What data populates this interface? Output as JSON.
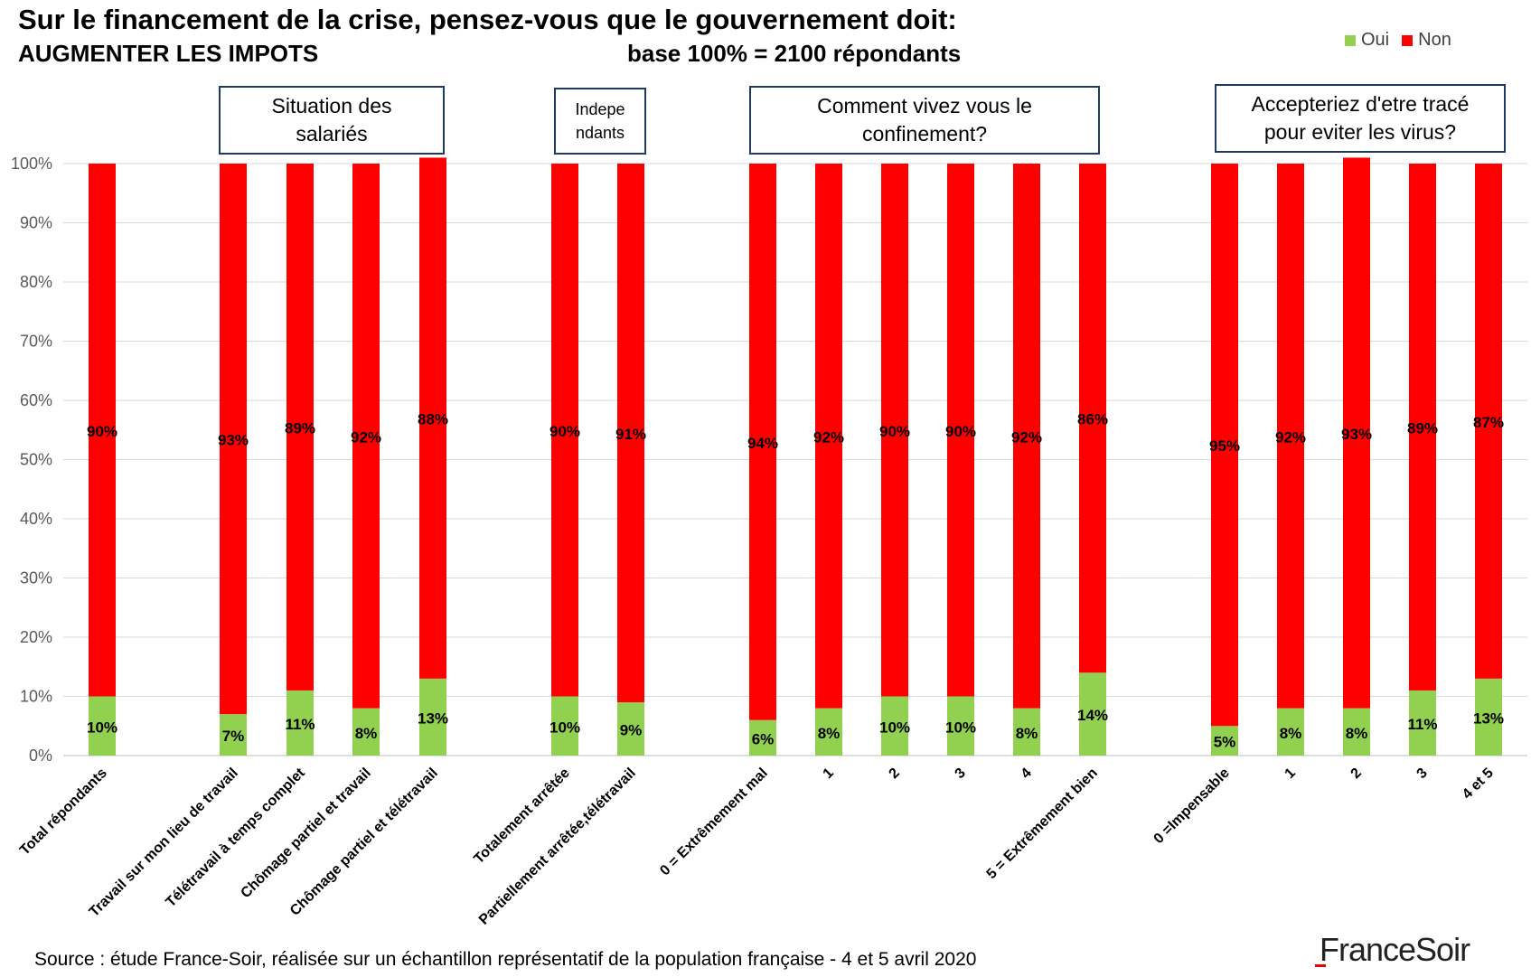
{
  "title": "Sur le financement de la crise, pensez-vous que le gouvernement doit:",
  "subtitle": "AUGMENTER LES IMPOTS",
  "base_label": "base 100% = 2100 répondants",
  "legend": [
    {
      "name": "Oui",
      "color": "#92d050"
    },
    {
      "name": "Non",
      "color": "#ff0000"
    }
  ],
  "group_boxes": [
    {
      "label": "Situation des\nsalariés"
    },
    {
      "label": "Indepe\nndants"
    },
    {
      "label": "Comment vivez vous le\nconfinement?"
    },
    {
      "label": "Accepteriez d'etre tracé\npour eviter les virus?"
    }
  ],
  "source": "Source : étude France-Soir, réalisée sur un échantillon représentatif de la population française - 4 et 5 avril 2020",
  "logo": "FranceSoir",
  "chart_data": {
    "type": "bar",
    "stacked": true,
    "categories": [
      "Total répondants",
      "Travail sur mon lieu de travail",
      "Télétravail à temps complet",
      "Chômage partiel et travail",
      "Chômage partiel et télétravail",
      "Totalement arrêtée",
      "Partiellement arrêtée,télétravail",
      "0 = Extrêmement mal",
      "1",
      "2",
      "3",
      "4",
      "5 = Extrêmement bien",
      "0 =Impensable",
      "1",
      "2",
      "3",
      "4 et 5"
    ],
    "series": [
      {
        "name": "Oui",
        "color": "#92d050",
        "values": [
          10,
          7,
          11,
          8,
          13,
          10,
          9,
          6,
          8,
          10,
          10,
          8,
          14,
          5,
          8,
          8,
          11,
          13
        ],
        "labels": [
          "10%",
          "7%",
          "11%",
          "8%",
          "13%",
          "10%",
          "9%",
          "6%",
          "8%",
          "10%",
          "10%",
          "8%",
          "14%",
          "5%",
          "8%",
          "8%",
          "11%",
          "13%"
        ]
      },
      {
        "name": "Non",
        "color": "#ff0000",
        "values": [
          90,
          93,
          89,
          92,
          88,
          90,
          91,
          94,
          92,
          90,
          90,
          92,
          86,
          95,
          92,
          93,
          89,
          87
        ],
        "labels": [
          "90%",
          "93%",
          "89%",
          "92%",
          "88%",
          "90%",
          "91%",
          "94%",
          "92%",
          "90%",
          "90%",
          "92%",
          "86%",
          "95%",
          "92%",
          "93%",
          "89%",
          "87%"
        ]
      }
    ],
    "y_ticks": [
      "0%",
      "10%",
      "20%",
      "30%",
      "40%",
      "50%",
      "60%",
      "70%",
      "80%",
      "90%",
      "100%"
    ],
    "ylim": [
      0,
      100
    ],
    "grid": true,
    "legend_position": "top-right"
  }
}
